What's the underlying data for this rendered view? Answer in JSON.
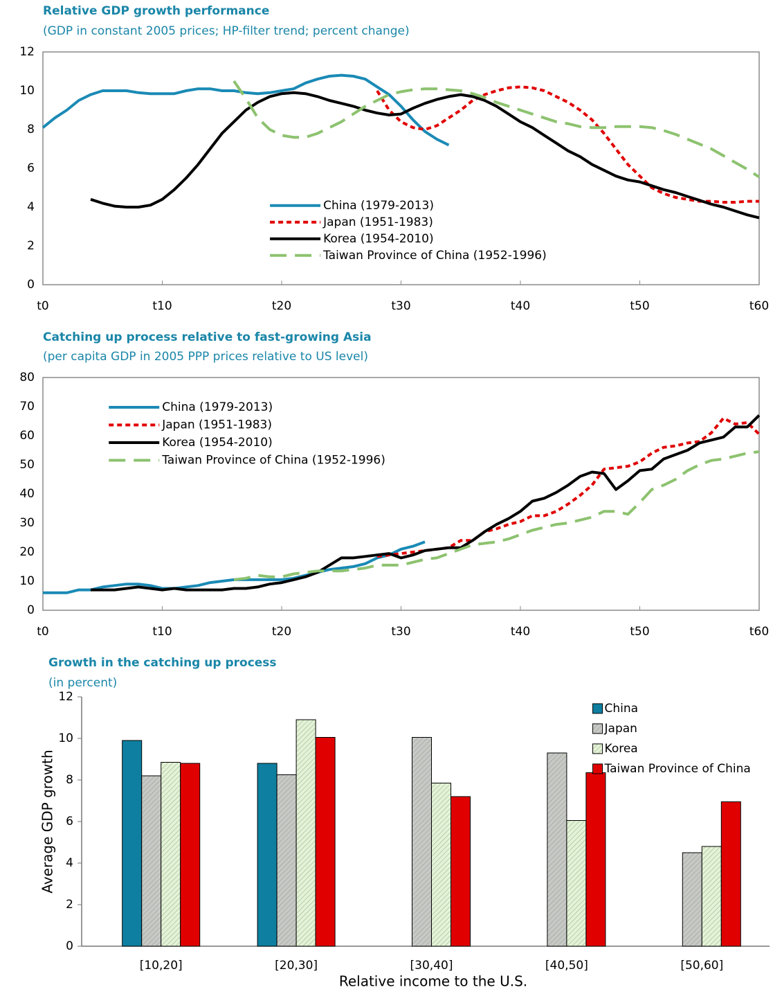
{
  "chart_data": [
    {
      "type": "line",
      "title": "Relative GDP growth performance",
      "subtitle": "(GDP in constant 2005 prices; HP-filter trend; percent change)",
      "x": [
        0,
        1,
        2,
        3,
        4,
        5,
        6,
        7,
        8,
        9,
        10,
        11,
        12,
        13,
        14,
        15,
        16,
        17,
        18,
        19,
        20,
        21,
        22,
        23,
        24,
        25,
        26,
        27,
        28,
        29,
        30,
        31,
        32,
        33,
        34,
        35,
        36,
        37,
        38,
        39,
        40,
        41,
        42,
        43,
        44,
        45,
        46,
        47,
        48,
        49,
        50,
        51,
        52,
        53,
        54,
        55,
        56,
        57,
        58,
        59,
        60
      ],
      "xlim": [
        0,
        60
      ],
      "xticks": [
        {
          "value": 0,
          "label": "t0"
        },
        {
          "value": 10,
          "label": "t10"
        },
        {
          "value": 20,
          "label": "t20"
        },
        {
          "value": 30,
          "label": "t30"
        },
        {
          "value": 40,
          "label": "t40"
        },
        {
          "value": 50,
          "label": "t50"
        },
        {
          "value": 60,
          "label": "t60"
        }
      ],
      "ylim": [
        0,
        12
      ],
      "yticks": [
        0,
        2,
        4,
        6,
        8,
        10,
        12
      ],
      "legend": "lower center",
      "series": [
        {
          "name": "China (1979-2013)",
          "color": "#1a8ab5",
          "style": "solid",
          "values": [
            8.1,
            8.6,
            9.0,
            9.5,
            9.8,
            10.0,
            10.0,
            10.0,
            9.9,
            9.85,
            9.85,
            9.85,
            10.0,
            10.1,
            10.1,
            10.0,
            10.0,
            9.9,
            9.85,
            9.9,
            10.0,
            10.1,
            10.4,
            10.6,
            10.75,
            10.8,
            10.75,
            10.6,
            10.2,
            9.8,
            9.2,
            8.5,
            7.9,
            7.5,
            7.2,
            null,
            null,
            null,
            null,
            null,
            null,
            null,
            null,
            null,
            null,
            null,
            null,
            null,
            null,
            null,
            null,
            null,
            null,
            null,
            null,
            null,
            null,
            null,
            null,
            null,
            null
          ]
        },
        {
          "name": "Japan (1951-1983)",
          "color": "#e00000",
          "style": "dotted",
          "values": [
            null,
            null,
            null,
            null,
            null,
            null,
            null,
            null,
            null,
            null,
            null,
            null,
            null,
            null,
            null,
            null,
            null,
            null,
            null,
            null,
            null,
            null,
            null,
            null,
            null,
            null,
            null,
            null,
            10.0,
            9.0,
            8.4,
            8.1,
            8.0,
            8.2,
            8.6,
            9.0,
            9.5,
            9.8,
            10.0,
            10.15,
            10.2,
            10.15,
            10.0,
            9.7,
            9.4,
            9.0,
            8.5,
            7.8,
            7.0,
            6.2,
            5.6,
            5.0,
            4.7,
            4.5,
            4.4,
            4.3,
            4.3,
            4.25,
            4.25,
            4.3,
            4.3
          ]
        },
        {
          "name": "Korea (1954-2010)",
          "color": "#000000",
          "style": "solid",
          "values": [
            null,
            null,
            null,
            null,
            4.4,
            4.2,
            4.05,
            4.0,
            4.0,
            4.1,
            4.4,
            4.9,
            5.5,
            6.2,
            7.0,
            7.8,
            8.4,
            9.0,
            9.4,
            9.7,
            9.85,
            9.9,
            9.85,
            9.7,
            9.5,
            9.35,
            9.2,
            9.0,
            8.85,
            8.75,
            8.8,
            9.1,
            9.35,
            9.55,
            9.7,
            9.8,
            9.7,
            9.5,
            9.2,
            8.8,
            8.4,
            8.1,
            7.7,
            7.3,
            6.9,
            6.6,
            6.2,
            5.9,
            5.6,
            5.4,
            5.3,
            5.1,
            4.9,
            4.75,
            4.55,
            4.35,
            4.15,
            4.0,
            3.8,
            3.6,
            3.45
          ]
        },
        {
          "name": "Taiwan Province of China (1952-1996)",
          "color": "#8dc26f",
          "style": "dashed",
          "values": [
            null,
            null,
            null,
            null,
            null,
            null,
            null,
            null,
            null,
            null,
            null,
            null,
            null,
            null,
            null,
            null,
            10.5,
            9.6,
            8.6,
            8.0,
            7.7,
            7.6,
            7.6,
            7.8,
            8.1,
            8.4,
            8.8,
            9.2,
            9.5,
            9.8,
            9.95,
            10.05,
            10.1,
            10.1,
            10.05,
            10.0,
            9.85,
            9.65,
            9.4,
            9.2,
            9.0,
            8.8,
            8.6,
            8.4,
            8.3,
            8.15,
            8.1,
            8.1,
            8.15,
            8.15,
            8.15,
            8.1,
            7.95,
            7.75,
            7.5,
            7.25,
            7.0,
            6.65,
            6.3,
            5.95,
            5.55
          ]
        }
      ]
    },
    {
      "type": "line",
      "title": "Catching up process relative to fast-growing Asia",
      "subtitle": "(per capita GDP in 2005 PPP prices relative to US level)",
      "x": [
        0,
        1,
        2,
        3,
        4,
        5,
        6,
        7,
        8,
        9,
        10,
        11,
        12,
        13,
        14,
        15,
        16,
        17,
        18,
        19,
        20,
        21,
        22,
        23,
        24,
        25,
        26,
        27,
        28,
        29,
        30,
        31,
        32,
        33,
        34,
        35,
        36,
        37,
        38,
        39,
        40,
        41,
        42,
        43,
        44,
        45,
        46,
        47,
        48,
        49,
        50,
        51,
        52,
        53,
        54,
        55,
        56,
        57,
        58,
        59,
        60
      ],
      "xlim": [
        0,
        60
      ],
      "xticks": [
        {
          "value": 0,
          "label": "t0"
        },
        {
          "value": 10,
          "label": "t10"
        },
        {
          "value": 20,
          "label": "t20"
        },
        {
          "value": 30,
          "label": "t30"
        },
        {
          "value": 40,
          "label": "t40"
        },
        {
          "value": 50,
          "label": "t50"
        },
        {
          "value": 60,
          "label": "t60"
        }
      ],
      "ylim": [
        0,
        80
      ],
      "yticks": [
        0,
        10,
        20,
        30,
        40,
        50,
        60,
        70,
        80
      ],
      "legend": "upper left",
      "series": [
        {
          "name": "China (1979-2013)",
          "color": "#1a8ab5",
          "style": "solid",
          "values": [
            6,
            6,
            6,
            7,
            7,
            8,
            8.5,
            9,
            9,
            8.5,
            7.5,
            7.5,
            8,
            8.5,
            9.5,
            10,
            10.5,
            10.5,
            10.5,
            10.5,
            10.5,
            11,
            12,
            13,
            14,
            14.5,
            15,
            16,
            18,
            19,
            21,
            22,
            23.5,
            null,
            null,
            null,
            null,
            null,
            null,
            null,
            null,
            null,
            null,
            null,
            null,
            null,
            null,
            null,
            null,
            null,
            null,
            null,
            null,
            null,
            null,
            null,
            null,
            null,
            null,
            null,
            null
          ]
        },
        {
          "name": "Japan (1951-1983)",
          "color": "#e00000",
          "style": "dotted",
          "values": [
            null,
            null,
            null,
            null,
            null,
            null,
            null,
            null,
            null,
            null,
            null,
            null,
            null,
            null,
            null,
            null,
            null,
            null,
            null,
            null,
            null,
            null,
            null,
            null,
            null,
            null,
            null,
            null,
            18.5,
            19,
            19.5,
            20,
            20.5,
            21,
            21.5,
            24,
            24,
            27,
            28,
            29.5,
            30.5,
            32.5,
            32.5,
            34,
            36.5,
            39.5,
            43,
            48.5,
            49,
            49.5,
            51,
            54,
            56,
            56.5,
            57.5,
            58,
            61,
            66,
            64,
            64.5,
            60.5
          ]
        },
        {
          "name": "Korea (1954-2010)",
          "color": "#000000",
          "style": "solid",
          "values": [
            null,
            null,
            null,
            null,
            7,
            7,
            7,
            7.5,
            8,
            7.5,
            7,
            7.5,
            7,
            7,
            7,
            7,
            7.5,
            7.5,
            8,
            9,
            9.5,
            10.5,
            11.5,
            13,
            15.5,
            18,
            18,
            18.5,
            19,
            19.5,
            18,
            19,
            20.5,
            21,
            21.5,
            21.5,
            24,
            27,
            29.5,
            31.5,
            34,
            37.5,
            38.5,
            40.5,
            43,
            46,
            47.5,
            47,
            41.5,
            44.5,
            48,
            48.5,
            52,
            53.5,
            55,
            57.5,
            58.5,
            59.5,
            63,
            63,
            67
          ]
        },
        {
          "name": "Taiwan Province of China (1952-1996)",
          "color": "#8dc26f",
          "style": "dashed",
          "values": [
            null,
            null,
            null,
            null,
            null,
            null,
            null,
            null,
            null,
            null,
            null,
            null,
            null,
            null,
            null,
            null,
            10.5,
            11,
            12,
            11.5,
            11.5,
            12.5,
            13,
            13.5,
            13.5,
            13.5,
            14,
            14.5,
            15.5,
            15.5,
            15.5,
            16.5,
            17.5,
            18,
            19.5,
            21,
            22.5,
            23,
            23.5,
            24.5,
            26,
            27.5,
            28.5,
            29.5,
            30,
            31,
            32,
            34,
            34,
            33,
            37,
            41.5,
            43,
            45,
            48,
            50,
            51.5,
            52,
            53,
            54,
            54.5
          ]
        }
      ]
    },
    {
      "type": "bar",
      "title": "Growth in the catching up process",
      "subtitle": "(in percent)",
      "xlabel": "Relative income to the U.S.",
      "ylabel": "Average GDP growth",
      "categories": [
        "[10,20]",
        "[20,30]",
        "[30,40]",
        "[40,50]",
        "[50,60]"
      ],
      "ylim": [
        0,
        12
      ],
      "yticks": [
        0,
        2,
        4,
        6,
        8,
        10,
        12
      ],
      "legend": "upper right",
      "series": [
        {
          "name": "China",
          "color": "#0e7fa0",
          "pattern": "solid",
          "values": [
            9.9,
            8.8,
            null,
            null,
            null
          ]
        },
        {
          "name": "Japan",
          "color": "#c8c8c8",
          "pattern": "hatch",
          "values": [
            8.2,
            8.25,
            10.05,
            9.3,
            4.5
          ]
        },
        {
          "name": "Korea",
          "color": "#e4f2d8",
          "pattern": "hatch",
          "values": [
            8.85,
            10.9,
            7.85,
            6.05,
            4.8
          ]
        },
        {
          "name": "Taiwan Province of China",
          "color": "#e00000",
          "pattern": "solid",
          "values": [
            8.8,
            10.05,
            7.2,
            8.35,
            6.95
          ]
        }
      ]
    }
  ]
}
